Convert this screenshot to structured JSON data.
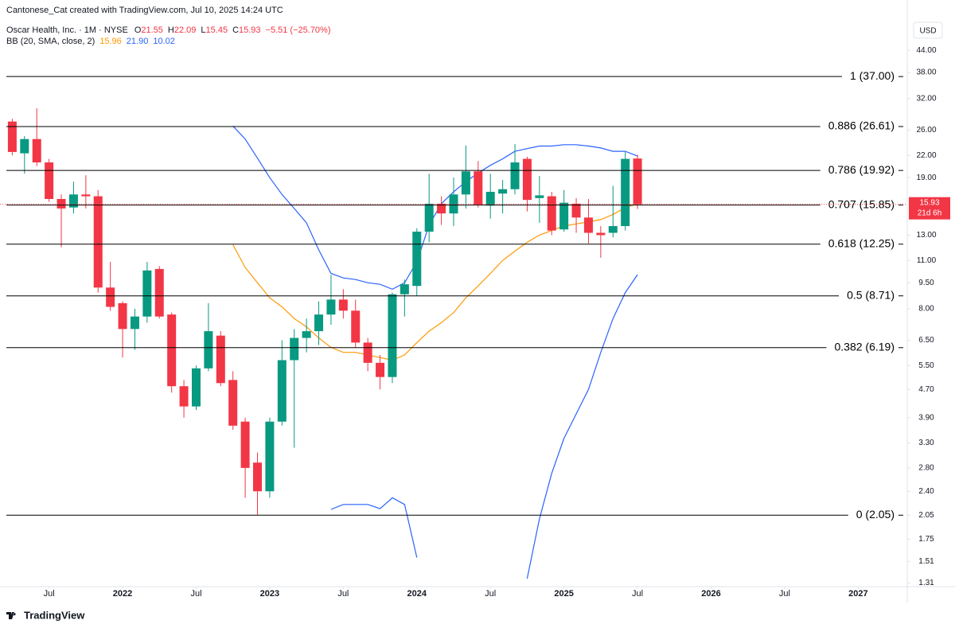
{
  "header": {
    "credit": "Cantonese_Cat created with TradingView.com, Jul 10, 2025 14:24 UTC",
    "symbol": "Oscar Health, Inc. · 1M · NYSE",
    "ohlc_letters": [
      "O",
      "H",
      "L",
      "C"
    ],
    "change": "−5.51 (−25.70%)",
    "indicator": "BB (20, SMA, close, 2)",
    "currency": "USD",
    "countdown": "21d 6h"
  },
  "footer": {
    "brand": "TradingView"
  },
  "chart_data": {
    "type": "candlestick",
    "log_scale": true,
    "x": [
      "2021-04",
      "2021-05",
      "2021-06",
      "2021-07",
      "2021-08",
      "2021-09",
      "2021-10",
      "2021-11",
      "2021-12",
      "2022-01",
      "2022-02",
      "2022-03",
      "2022-04",
      "2022-05",
      "2022-06",
      "2022-07",
      "2022-08",
      "2022-09",
      "2022-10",
      "2022-11",
      "2022-12",
      "2023-01",
      "2023-02",
      "2023-03",
      "2023-04",
      "2023-05",
      "2023-06",
      "2023-07",
      "2023-08",
      "2023-09",
      "2023-10",
      "2023-11",
      "2023-12",
      "2024-01",
      "2024-02",
      "2024-03",
      "2024-04",
      "2024-05",
      "2024-06",
      "2024-07",
      "2024-08",
      "2024-09",
      "2024-10",
      "2024-11",
      "2024-12",
      "2025-01",
      "2025-02",
      "2025-03",
      "2025-04",
      "2025-05",
      "2025-06",
      "2025-07"
    ],
    "open": [
      27.5,
      22.3,
      24.5,
      21,
      16.5,
      15.6,
      17,
      16.8,
      9.2,
      8.3,
      7.0,
      7.6,
      10.4,
      7.7,
      4.8,
      4.2,
      5.4,
      6.7,
      5.0,
      3.8,
      2.9,
      2.4,
      3.8,
      5.7,
      6.6,
      6.9,
      7.7,
      8.5,
      7.9,
      6.4,
      5.6,
      5.1,
      8.8,
      9.3,
      13.3,
      16,
      15,
      17,
      19.8,
      15.8,
      17.1,
      17.6,
      21.5,
      16.6,
      16.8,
      13.5,
      16,
      14.6,
      13.2,
      13.2,
      13.8,
      21.55
    ],
    "high": [
      28,
      25,
      30,
      21.5,
      17,
      18.5,
      19.3,
      17.5,
      10.9,
      8.4,
      8,
      10.9,
      10.6,
      7.8,
      5,
      5.5,
      8.3,
      6.9,
      5.3,
      3.9,
      3.1,
      3.9,
      6.5,
      7,
      7.5,
      8.4,
      10,
      9.1,
      8.5,
      6.6,
      5.9,
      8.9,
      9.7,
      13.6,
      19.5,
      16.8,
      19,
      23.5,
      21.2,
      19.5,
      18.7,
      23.7,
      21.8,
      19.2,
      17.3,
      17.5,
      16.6,
      16.5,
      13.8,
      18,
      22.5,
      22.09
    ],
    "low": [
      22,
      19.5,
      20.5,
      16.2,
      12,
      15,
      15.5,
      8.9,
      7.9,
      5.8,
      6.1,
      7.3,
      7.5,
      4.6,
      3.9,
      4.1,
      5.3,
      4.8,
      3.6,
      2.3,
      2.05,
      2.3,
      3.7,
      3.2,
      6.0,
      6.3,
      7.2,
      7.5,
      6.2,
      5.3,
      4.7,
      4.9,
      7.6,
      8.7,
      12.4,
      13.9,
      13.8,
      15.5,
      15.6,
      14.5,
      15,
      17,
      15.2,
      14.1,
      13.0,
      13.3,
      13.2,
      12.3,
      11.2,
      12.8,
      13.4,
      15.45
    ],
    "close": [
      22.5,
      24.5,
      21,
      16.5,
      15.5,
      17,
      16.8,
      9.2,
      8.1,
      7,
      7.6,
      10.3,
      7.6,
      4.8,
      4.2,
      5.4,
      6.9,
      4.9,
      3.7,
      2.8,
      2.4,
      3.8,
      5.7,
      6.6,
      6.9,
      7.7,
      8.5,
      7.9,
      6.4,
      5.6,
      5.1,
      8.8,
      9.4,
      13.3,
      16,
      15,
      17,
      19.8,
      15.9,
      17.3,
      17.6,
      21,
      16.4,
      16.9,
      13.4,
      16.1,
      14.6,
      13.2,
      13.0,
      13.8,
      21.5,
      15.93
    ],
    "up_color": "#089981",
    "down_color": "#f23645",
    "series": [
      {
        "name": "basis",
        "color": "#ff9800",
        "legend_value": "15.96",
        "values": [
          null,
          null,
          null,
          null,
          null,
          null,
          null,
          null,
          null,
          null,
          null,
          null,
          null,
          null,
          null,
          null,
          null,
          null,
          12.2,
          10.5,
          9.5,
          8.6,
          8.1,
          7.5,
          7.1,
          6.6,
          6.2,
          6.0,
          6.0,
          5.9,
          5.8,
          5.7,
          5.9,
          6.4,
          6.9,
          7.3,
          7.8,
          8.6,
          9.3,
          10.1,
          11.0,
          11.7,
          12.4,
          13.0,
          13.4,
          13.8,
          14.0,
          14.2,
          14.4,
          14.9,
          15.6,
          15.96
        ]
      },
      {
        "name": "upper",
        "color": "#2962ff",
        "legend_value": "21.90",
        "values": [
          null,
          null,
          null,
          null,
          null,
          null,
          null,
          null,
          null,
          null,
          null,
          null,
          null,
          null,
          null,
          null,
          null,
          null,
          26.7,
          24.5,
          21.6,
          19.0,
          17.0,
          15.5,
          14.1,
          11.8,
          10.1,
          9.8,
          9.7,
          9.5,
          9.4,
          9.1,
          9.5,
          10.9,
          13.9,
          16.0,
          17.3,
          18.5,
          19.6,
          20.6,
          21.5,
          22.6,
          23.0,
          23.4,
          23.4,
          23.6,
          23.6,
          23.4,
          23.1,
          22.6,
          22.6,
          21.9
        ]
      },
      {
        "name": "lower",
        "color": "#2962ff",
        "legend_value": "10.02",
        "values": [
          null,
          null,
          null,
          null,
          null,
          null,
          null,
          null,
          null,
          null,
          null,
          null,
          null,
          null,
          null,
          null,
          null,
          null,
          null,
          null,
          null,
          null,
          null,
          null,
          null,
          null,
          2.13,
          2.2,
          2.2,
          2.2,
          2.14,
          2.3,
          2.2,
          1.55,
          null,
          null,
          null,
          null,
          null,
          null,
          null,
          null,
          1.35,
          2.0,
          2.7,
          3.4,
          4.0,
          4.7,
          6.0,
          7.5,
          8.9,
          10.02
        ]
      }
    ],
    "levels": [
      {
        "value": 37,
        "label": "1 (37.00)"
      },
      {
        "value": 26.61,
        "label": "0.886 (26.61)"
      },
      {
        "value": 19.92,
        "label": "0.786 (19.92)"
      },
      {
        "value": 15.85,
        "label": "0.707 (15.85)"
      },
      {
        "value": 12.25,
        "label": "0.618 (12.25)"
      },
      {
        "value": 8.71,
        "label": "0.5 (8.71)"
      },
      {
        "value": 6.19,
        "label": "0.382 (6.19)"
      },
      {
        "value": 2.05,
        "label": "0 (2.05)"
      }
    ],
    "xlim": [
      "2021-03",
      "2027-05"
    ],
    "ylim": [
      1.28,
      61.3
    ],
    "xticks": [
      {
        "value": "2021-07",
        "label": "Jul"
      },
      {
        "value": "2022-01",
        "label": "2022"
      },
      {
        "value": "2022-07",
        "label": "Jul"
      },
      {
        "value": "2023-01",
        "label": "2023"
      },
      {
        "value": "2023-07",
        "label": "Jul"
      },
      {
        "value": "2024-01",
        "label": "2024"
      },
      {
        "value": "2024-07",
        "label": "Jul"
      },
      {
        "value": "2025-01",
        "label": "2025"
      },
      {
        "value": "2025-07",
        "label": "Jul"
      },
      {
        "value": "2026-01",
        "label": "2026"
      },
      {
        "value": "2026-07",
        "label": "Jul"
      },
      {
        "value": "2027-01",
        "label": "2027"
      }
    ],
    "yticks": [
      {
        "value": 44,
        "label": "44.00"
      },
      {
        "value": 38,
        "label": "38.00"
      },
      {
        "value": 32,
        "label": "32.00"
      },
      {
        "value": 26,
        "label": "26.00"
      },
      {
        "value": 22,
        "label": "22.00"
      },
      {
        "value": 19,
        "label": "19.00"
      },
      {
        "value": 13,
        "label": "13.00"
      },
      {
        "value": 11,
        "label": "11.00"
      },
      {
        "value": 9.5,
        "label": "9.50"
      },
      {
        "value": 8,
        "label": "8.00"
      },
      {
        "value": 6.5,
        "label": "6.50"
      },
      {
        "value": 5.5,
        "label": "5.50"
      },
      {
        "value": 4.7,
        "label": "4.70"
      },
      {
        "value": 3.9,
        "label": "3.90"
      },
      {
        "value": 3.3,
        "label": "3.30"
      },
      {
        "value": 2.8,
        "label": "2.80"
      },
      {
        "value": 2.4,
        "label": "2.40"
      },
      {
        "value": 2.05,
        "label": "2.05"
      },
      {
        "value": 1.75,
        "label": "1.75"
      },
      {
        "value": 1.51,
        "label": "1.51"
      },
      {
        "value": 1.31,
        "label": "1.31"
      }
    ],
    "grid": false
  }
}
